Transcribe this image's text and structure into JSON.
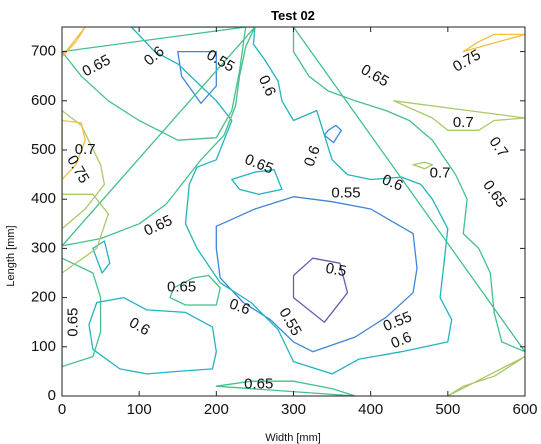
{
  "chart_data": {
    "type": "contour",
    "title": "Test 02",
    "xlabel": "Width [mm]",
    "ylabel": "Length [mm]",
    "xlim": [
      0,
      600
    ],
    "ylim": [
      0,
      750
    ],
    "xticks": [
      "0",
      "100",
      "200",
      "300",
      "400",
      "500",
      "600"
    ],
    "yticks": [
      "0",
      "100",
      "200",
      "300",
      "400",
      "500",
      "600",
      "700"
    ],
    "grid": false,
    "levels": [
      {
        "level": 0.5,
        "color": "#6a5bb5"
      },
      {
        "level": 0.55,
        "color": "#3f86d6"
      },
      {
        "level": 0.6,
        "color": "#22b3c0"
      },
      {
        "level": 0.65,
        "color": "#45c08a"
      },
      {
        "level": 0.7,
        "color": "#a9c96a"
      },
      {
        "level": 0.75,
        "color": "#f2bf45"
      }
    ],
    "contours": [
      {
        "level": 0.5,
        "closed": true,
        "points": [
          [
            300,
            245
          ],
          [
            325,
            280
          ],
          [
            360,
            270
          ],
          [
            370,
            210
          ],
          [
            340,
            150
          ],
          [
            300,
            200
          ]
        ]
      },
      {
        "level": 0.55,
        "closed": true,
        "points": [
          [
            150,
            700
          ],
          [
            200,
            700
          ],
          [
            200,
            630
          ],
          [
            180,
            595
          ],
          [
            155,
            650
          ]
        ]
      },
      {
        "level": 0.55,
        "closed": true,
        "points": [
          [
            345,
            540
          ],
          [
            355,
            550
          ],
          [
            362,
            540
          ],
          [
            352,
            515
          ],
          [
            340,
            530
          ]
        ]
      },
      {
        "level": 0.55,
        "closed": true,
        "points": [
          [
            200,
            300
          ],
          [
            200,
            345
          ],
          [
            250,
            380
          ],
          [
            300,
            405
          ],
          [
            350,
            395
          ],
          [
            400,
            380
          ],
          [
            455,
            330
          ],
          [
            460,
            260
          ],
          [
            455,
            210
          ],
          [
            420,
            160
          ],
          [
            380,
            120
          ],
          [
            325,
            90
          ],
          [
            300,
            110
          ],
          [
            270,
            155
          ],
          [
            235,
            190
          ],
          [
            205,
            240
          ]
        ]
      },
      {
        "level": 0.6,
        "closed": true,
        "points": [
          [
            40,
            300
          ],
          [
            52,
            250
          ],
          [
            62,
            270
          ],
          [
            55,
            315
          ]
        ]
      },
      {
        "level": 0.6,
        "closed": true,
        "points": [
          [
            250,
            750
          ],
          [
            248,
            715
          ],
          [
            262,
            685
          ],
          [
            280,
            640
          ],
          [
            285,
            600
          ],
          [
            300,
            560
          ],
          [
            330,
            580
          ],
          [
            340,
            530
          ],
          [
            350,
            480
          ],
          [
            370,
            450
          ],
          [
            400,
            440
          ],
          [
            440,
            445
          ],
          [
            465,
            430
          ],
          [
            480,
            400
          ],
          [
            500,
            340
          ],
          [
            495,
            270
          ],
          [
            490,
            200
          ],
          [
            505,
            155
          ],
          [
            500,
            110
          ],
          [
            440,
            90
          ],
          [
            385,
            75
          ],
          [
            350,
            45
          ],
          [
            300,
            70
          ],
          [
            280,
            135
          ],
          [
            245,
            190
          ],
          [
            205,
            230
          ],
          [
            175,
            300
          ],
          [
            160,
            350
          ],
          [
            165,
            430
          ],
          [
            175,
            465
          ],
          [
            200,
            480
          ],
          [
            220,
            560
          ],
          [
            200,
            600
          ],
          [
            150,
            675
          ],
          [
            120,
            700
          ],
          [
            90,
            750
          ]
        ]
      },
      {
        "level": 0.6,
        "closed": true,
        "points": [
          [
            45,
            190
          ],
          [
            35,
            145
          ],
          [
            40,
            95
          ],
          [
            75,
            55
          ],
          [
            110,
            45
          ],
          [
            150,
            50
          ],
          [
            195,
            55
          ],
          [
            200,
            90
          ],
          [
            195,
            140
          ],
          [
            160,
            170
          ],
          [
            110,
            175
          ],
          [
            80,
            200
          ]
        ]
      },
      {
        "level": 0.6,
        "closed": true,
        "points": [
          [
            220,
            440
          ],
          [
            250,
            455
          ],
          [
            275,
            460
          ],
          [
            285,
            420
          ],
          [
            255,
            410
          ],
          [
            230,
            420
          ]
        ]
      },
      {
        "level": 0.65,
        "closed": true,
        "points": [
          [
            0,
            700
          ],
          [
            25,
            650
          ],
          [
            60,
            600
          ],
          [
            100,
            560
          ],
          [
            150,
            520
          ],
          [
            200,
            525
          ],
          [
            220,
            580
          ],
          [
            230,
            660
          ],
          [
            238,
            750
          ]
        ]
      },
      {
        "level": 0.65,
        "closed": true,
        "points": [
          [
            0,
            305
          ],
          [
            50,
            320
          ],
          [
            100,
            350
          ],
          [
            135,
            390
          ],
          [
            160,
            440
          ],
          [
            180,
            480
          ],
          [
            210,
            530
          ],
          [
            225,
            590
          ],
          [
            230,
            650
          ],
          [
            238,
            710
          ],
          [
            250,
            750
          ]
        ]
      },
      {
        "level": 0.65,
        "closed": true,
        "points": [
          [
            300,
            750
          ],
          [
            300,
            700
          ],
          [
            320,
            650
          ],
          [
            345,
            620
          ],
          [
            380,
            600
          ],
          [
            420,
            580
          ],
          [
            450,
            560
          ],
          [
            480,
            520
          ],
          [
            510,
            450
          ],
          [
            525,
            400
          ],
          [
            520,
            330
          ],
          [
            540,
            300
          ],
          [
            555,
            250
          ],
          [
            560,
            170
          ],
          [
            570,
            110
          ],
          [
            600,
            90
          ]
        ]
      },
      {
        "level": 0.65,
        "closed": true,
        "points": [
          [
            145,
            220
          ],
          [
            170,
            240
          ],
          [
            190,
            245
          ],
          [
            205,
            220
          ],
          [
            200,
            185
          ],
          [
            160,
            185
          ],
          [
            140,
            200
          ]
        ]
      },
      {
        "level": 0.65,
        "closed": true,
        "points": [
          [
            0,
            280
          ],
          [
            40,
            250
          ],
          [
            50,
            200
          ],
          [
            50,
            130
          ],
          [
            40,
            80
          ],
          [
            0,
            60
          ]
        ]
      },
      {
        "level": 0.65,
        "closed": true,
        "points": [
          [
            200,
            20
          ],
          [
            245,
            30
          ],
          [
            300,
            30
          ],
          [
            350,
            15
          ],
          [
            380,
            0
          ]
        ]
      },
      {
        "level": 0.7,
        "closed": true,
        "points": [
          [
            0,
            580
          ],
          [
            25,
            550
          ],
          [
            50,
            470
          ],
          [
            55,
            430
          ],
          [
            30,
            380
          ],
          [
            0,
            340
          ]
        ]
      },
      {
        "level": 0.7,
        "closed": true,
        "points": [
          [
            430,
            600
          ],
          [
            480,
            565
          ],
          [
            500,
            540
          ],
          [
            540,
            540
          ],
          [
            560,
            560
          ],
          [
            600,
            565
          ]
        ]
      },
      {
        "level": 0.7,
        "closed": true,
        "points": [
          [
            455,
            470
          ],
          [
            470,
            475
          ],
          [
            480,
            470
          ],
          [
            470,
            462
          ]
        ]
      },
      {
        "level": 0.7,
        "closed": true,
        "points": [
          [
            0,
            410
          ],
          [
            40,
            410
          ],
          [
            60,
            370
          ],
          [
            45,
            300
          ],
          [
            0,
            250
          ]
        ]
      },
      {
        "level": 0.7,
        "closed": true,
        "points": [
          [
            500,
            0
          ],
          [
            520,
            20
          ],
          [
            560,
            40
          ],
          [
            600,
            80
          ]
        ]
      },
      {
        "level": 0.75,
        "closed": true,
        "points": [
          [
            0,
            690
          ],
          [
            18,
            720
          ],
          [
            30,
            750
          ]
        ]
      },
      {
        "level": 0.75,
        "closed": true,
        "points": [
          [
            0,
            440
          ],
          [
            18,
            470
          ],
          [
            30,
            520
          ],
          [
            25,
            555
          ],
          [
            0,
            560
          ]
        ]
      },
      {
        "level": 0.75,
        "closed": true,
        "points": [
          [
            520,
            700
          ],
          [
            540,
            720
          ],
          [
            560,
            735
          ],
          [
            600,
            735
          ]
        ]
      }
    ],
    "labels": [
      {
        "text": "0.65",
        "x": 45,
        "y": 670,
        "angle": -28
      },
      {
        "text": "0.6",
        "x": 120,
        "y": 690,
        "angle": -40
      },
      {
        "text": "0.55",
        "x": 205,
        "y": 680,
        "angle": 30
      },
      {
        "text": "0.6",
        "x": 265,
        "y": 630,
        "angle": 65
      },
      {
        "text": "0.65",
        "x": 405,
        "y": 650,
        "angle": 30
      },
      {
        "text": "0.75",
        "x": 525,
        "y": 680,
        "angle": -30
      },
      {
        "text": "0.7",
        "x": 520,
        "y": 555,
        "angle": 0
      },
      {
        "text": "0.7",
        "x": 565,
        "y": 505,
        "angle": 55
      },
      {
        "text": "0.7",
        "x": 30,
        "y": 500,
        "angle": 0
      },
      {
        "text": "0.75",
        "x": 20,
        "y": 460,
        "angle": 60
      },
      {
        "text": "0.65",
        "x": 255,
        "y": 470,
        "angle": 22
      },
      {
        "text": "0.6",
        "x": 325,
        "y": 487,
        "angle": -70
      },
      {
        "text": "0.55",
        "x": 368,
        "y": 412,
        "angle": 0
      },
      {
        "text": "0.6",
        "x": 428,
        "y": 432,
        "angle": 22
      },
      {
        "text": "0.7",
        "x": 490,
        "y": 452,
        "angle": 0
      },
      {
        "text": "0.65",
        "x": 560,
        "y": 410,
        "angle": 55
      },
      {
        "text": "0.65",
        "x": 125,
        "y": 345,
        "angle": -25
      },
      {
        "text": "0.5",
        "x": 355,
        "y": 255,
        "angle": 10
      },
      {
        "text": "0.65",
        "x": 155,
        "y": 220,
        "angle": 0
      },
      {
        "text": "0.6",
        "x": 230,
        "y": 180,
        "angle": 20
      },
      {
        "text": "0.55",
        "x": 295,
        "y": 150,
        "angle": 60
      },
      {
        "text": "0.6",
        "x": 100,
        "y": 140,
        "angle": 30
      },
      {
        "text": "0.65",
        "x": 15,
        "y": 150,
        "angle": -90
      },
      {
        "text": "0.55",
        "x": 435,
        "y": 150,
        "angle": -22
      },
      {
        "text": "0.6",
        "x": 440,
        "y": 112,
        "angle": -22
      },
      {
        "text": "0.65",
        "x": 255,
        "y": 23,
        "angle": 0
      }
    ]
  }
}
